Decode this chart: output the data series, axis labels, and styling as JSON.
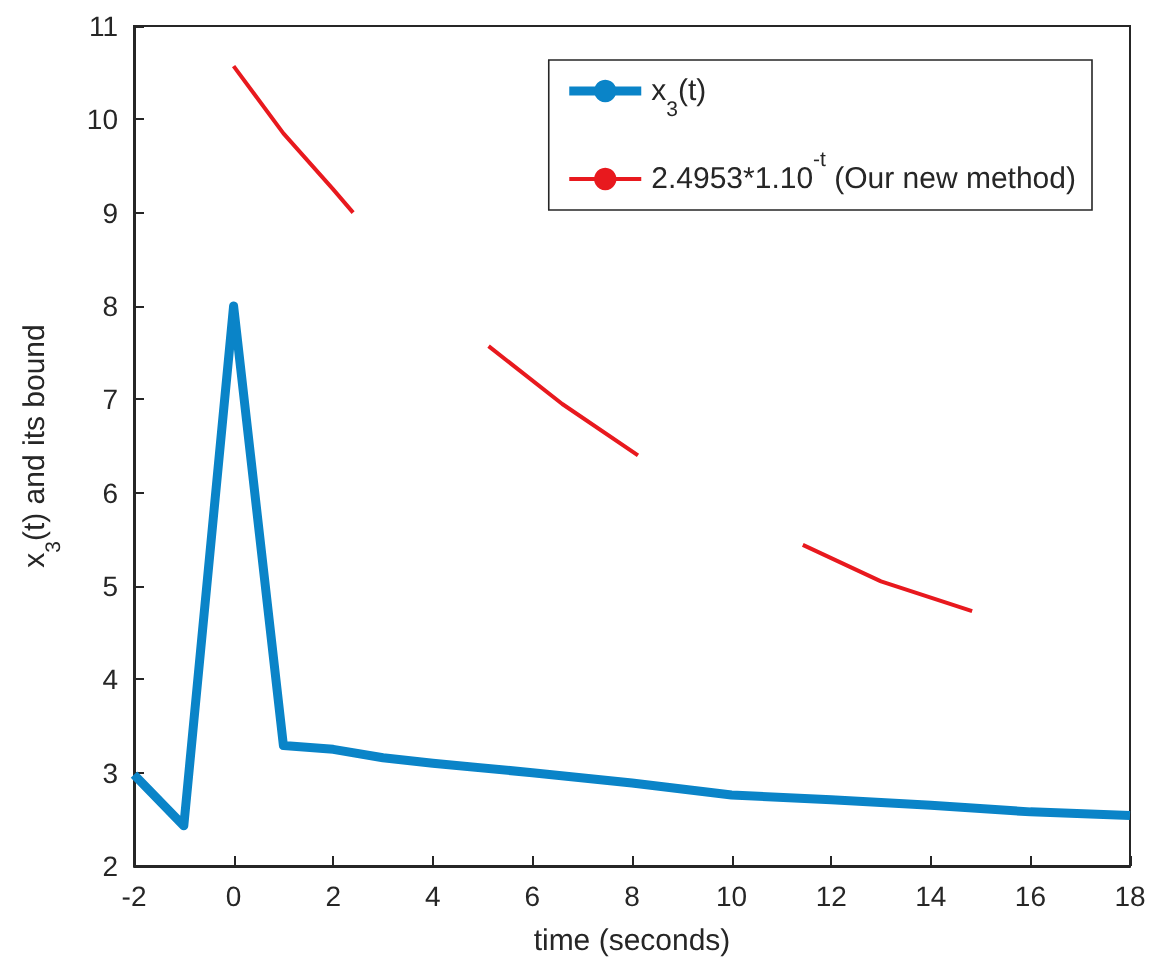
{
  "chart_data": {
    "type": "line",
    "xlabel": "time (seconds)",
    "ylabel": "x$_{3}$(t) and its bound",
    "xlim": [
      -2,
      18
    ],
    "xticks": [
      -2,
      0,
      2,
      4,
      6,
      8,
      10,
      12,
      14,
      16,
      18
    ],
    "ylim": [
      2,
      11
    ],
    "yticks": [
      2,
      3,
      4,
      5,
      6,
      7,
      8,
      9,
      10,
      11
    ],
    "legend": "top right",
    "marker": "none",
    "line_style": "solid",
    "series": [
      {
        "name": "x$_{3}$(t)",
        "color": "#0a84c8",
        "x": [
          -2,
          -1,
          0,
          1,
          2,
          3,
          4,
          6,
          8,
          10,
          12,
          14,
          16,
          18
        ],
        "values": [
          2.98,
          2.43,
          8,
          3.29,
          3.25,
          3.16,
          3.1,
          3.0,
          2.89,
          2.76,
          2.71,
          2.65,
          2.58,
          2.54
        ]
      },
      {
        "name": "2.4953*1.10$^{-t}$ (Our new method)",
        "color": "#e8191e",
        "x": [
          0,
          1,
          2,
          2.4,
          3,
          5.12,
          6.6,
          8.12,
          9,
          11.43,
          13,
          14.83
        ],
        "values": [
          10.57,
          9.85,
          9.25,
          9.0,
          null,
          7.57,
          6.95,
          6.4,
          null,
          5.44,
          5.05,
          4.73
        ]
      }
    ]
  }
}
